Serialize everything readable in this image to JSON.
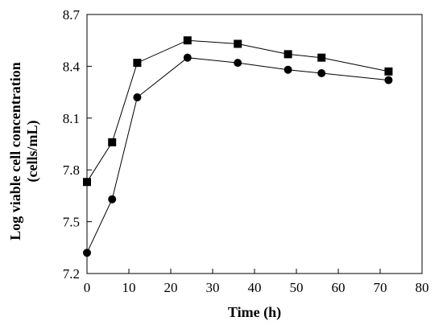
{
  "chart_data": {
    "type": "line",
    "title": "",
    "xlabel": "Time (h)",
    "ylabel_lines": [
      "Log viable cell concentration",
      "(cells/mL)"
    ],
    "xlim": [
      0,
      80
    ],
    "ylim": [
      7.2,
      8.7
    ],
    "xticks": [
      "0",
      "10",
      "20",
      "30",
      "40",
      "50",
      "60",
      "70",
      "80"
    ],
    "yticks": [
      "7.2",
      "7.5",
      "7.8",
      "8.1",
      "8.4",
      "8.7"
    ],
    "grid": false,
    "legend": "none",
    "series": [
      {
        "marker": "square",
        "color": "#000000",
        "x": [
          0,
          6,
          12,
          24,
          36,
          48,
          56,
          72
        ],
        "y": [
          7.73,
          7.96,
          8.42,
          8.55,
          8.53,
          8.47,
          8.45,
          8.37
        ]
      },
      {
        "marker": "circle",
        "color": "#000000",
        "x": [
          0,
          6,
          12,
          24,
          36,
          48,
          56,
          72
        ],
        "y": [
          7.32,
          7.63,
          8.22,
          8.45,
          8.42,
          8.38,
          8.36,
          8.32
        ]
      }
    ]
  }
}
